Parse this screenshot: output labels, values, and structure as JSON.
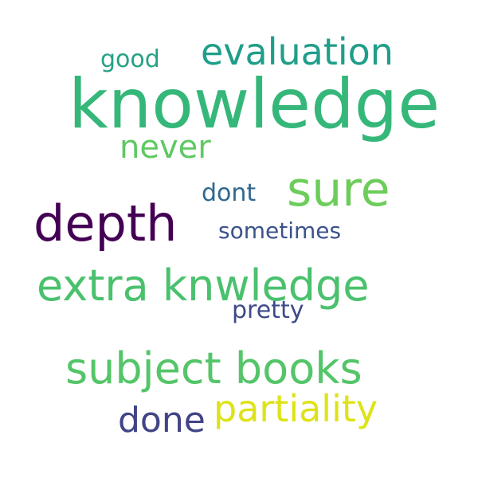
{
  "words": {
    "knowledge": {
      "text": "knowledge",
      "color": "#35b779"
    },
    "evaluation": {
      "text": "evaluation",
      "color": "#1f9e89"
    },
    "good": {
      "text": "good",
      "color": "#26a185"
    },
    "never": {
      "text": "never",
      "color": "#5ec962"
    },
    "sure": {
      "text": "sure",
      "color": "#6ccd5a"
    },
    "dont": {
      "text": "dont",
      "color": "#31688e"
    },
    "depth": {
      "text": "depth",
      "color": "#440154"
    },
    "sometimes": {
      "text": "sometimes",
      "color": "#3b528b"
    },
    "extra": {
      "text": "extra knwledge",
      "color": "#4ac16d"
    },
    "pretty": {
      "text": "pretty",
      "color": "#3e4a89"
    },
    "subject": {
      "text": "subject books",
      "color": "#54c568"
    },
    "partiality": {
      "text": "partiality",
      "color": "#dde318"
    },
    "done": {
      "text": "done",
      "color": "#414487"
    }
  }
}
